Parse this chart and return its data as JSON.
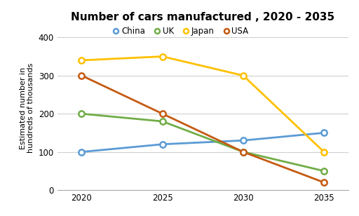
{
  "title": "Number of cars manufactured , 2020 - 2035",
  "ylabel": "Estimated number in\nhundreds of thousands",
  "years": [
    2020,
    2025,
    2030,
    2035
  ],
  "series": {
    "China": {
      "values": [
        100,
        120,
        130,
        150
      ],
      "color": "#5B9BD5",
      "marker": "o"
    },
    "UK": {
      "values": [
        200,
        180,
        100,
        50
      ],
      "color": "#70AD47",
      "marker": "o"
    },
    "Japan": {
      "values": [
        340,
        350,
        300,
        100
      ],
      "color": "#FFC000",
      "marker": "o"
    },
    "USA": {
      "values": [
        300,
        200,
        100,
        20
      ],
      "color": "#C55A11",
      "marker": "o"
    }
  },
  "ylim": [
    0,
    430
  ],
  "yticks": [
    0,
    100,
    200,
    300,
    400
  ],
  "xlim": [
    2018.5,
    2036.5
  ],
  "xticks": [
    2020,
    2025,
    2030,
    2035
  ],
  "legend_order": [
    "China",
    "UK",
    "Japan",
    "USA"
  ],
  "background_color": "#ffffff",
  "grid_color": "#d0d0d0",
  "title_fontsize": 11,
  "label_fontsize": 8,
  "tick_fontsize": 8.5,
  "legend_fontsize": 8.5,
  "linewidth": 2.0,
  "markersize": 6
}
